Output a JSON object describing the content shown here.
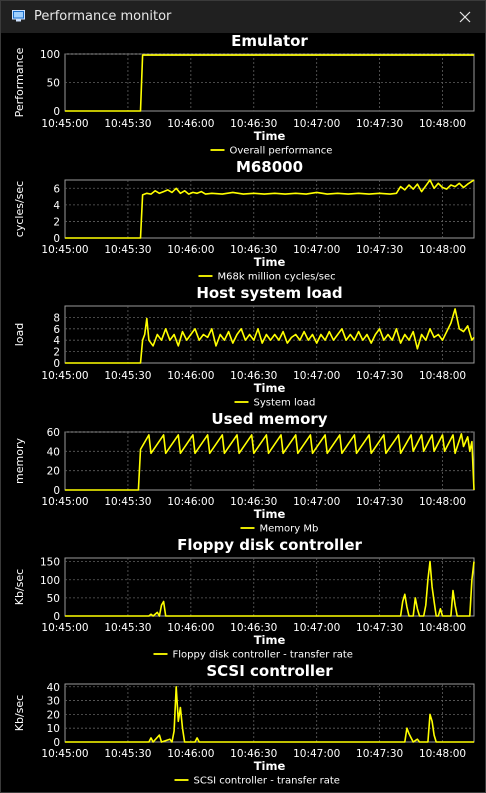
{
  "window": {
    "title": "Performance monitor",
    "icon": "monitor-icon",
    "close_icon": "close-icon"
  },
  "colors": {
    "background": "#000000",
    "series": "#ffff00",
    "grid": "#606060",
    "text": "#ffffff",
    "titlebar": "#202020"
  },
  "x_ticks": [
    "10:45:00",
    "10:45:30",
    "10:46:00",
    "10:46:30",
    "10:47:00",
    "10:47:30",
    "10:48:00"
  ],
  "xlabel": "Time",
  "chart_data": [
    {
      "type": "line",
      "title": "Emulator",
      "ylabel": "Performance",
      "xlabel": "Time",
      "ylim": [
        0,
        100
      ],
      "yticks": [
        0,
        50,
        100
      ],
      "legend": "Overall performance",
      "grid": true,
      "x_range": [
        "10:45:00",
        "10:48:15"
      ],
      "points": [
        [
          0,
          0
        ],
        [
          36,
          0
        ],
        [
          37,
          98
        ],
        [
          195,
          98
        ]
      ]
    },
    {
      "type": "line",
      "title": "M68000",
      "ylabel": "cycles/sec",
      "xlabel": "Time",
      "ylim": [
        0,
        7
      ],
      "yticks": [
        0,
        2,
        4,
        6
      ],
      "legend": "M68k million cycles/sec",
      "grid": true,
      "x_range": [
        "10:45:00",
        "10:48:15"
      ],
      "points": [
        [
          0,
          0
        ],
        [
          36,
          0
        ],
        [
          37,
          5.2
        ],
        [
          39,
          5.4
        ],
        [
          41,
          5.3
        ],
        [
          43,
          5.7
        ],
        [
          45,
          5.4
        ],
        [
          47,
          5.6
        ],
        [
          49,
          5.8
        ],
        [
          51,
          5.5
        ],
        [
          53,
          6.0
        ],
        [
          55,
          5.4
        ],
        [
          57,
          5.7
        ],
        [
          59,
          5.3
        ],
        [
          61,
          5.5
        ],
        [
          63,
          5.4
        ],
        [
          65,
          5.6
        ],
        [
          67,
          5.3
        ],
        [
          70,
          5.4
        ],
        [
          75,
          5.3
        ],
        [
          80,
          5.5
        ],
        [
          85,
          5.3
        ],
        [
          90,
          5.4
        ],
        [
          95,
          5.3
        ],
        [
          100,
          5.4
        ],
        [
          105,
          5.3
        ],
        [
          110,
          5.4
        ],
        [
          115,
          5.3
        ],
        [
          120,
          5.5
        ],
        [
          125,
          5.3
        ],
        [
          130,
          5.4
        ],
        [
          135,
          5.3
        ],
        [
          140,
          5.4
        ],
        [
          145,
          5.3
        ],
        [
          150,
          5.4
        ],
        [
          155,
          5.3
        ],
        [
          158,
          5.4
        ],
        [
          160,
          6.2
        ],
        [
          162,
          5.8
        ],
        [
          164,
          6.4
        ],
        [
          166,
          5.9
        ],
        [
          168,
          6.5
        ],
        [
          170,
          5.6
        ],
        [
          172,
          6.3
        ],
        [
          174,
          7.0
        ],
        [
          176,
          6.0
        ],
        [
          178,
          6.6
        ],
        [
          180,
          6.1
        ],
        [
          182,
          5.9
        ],
        [
          184,
          6.4
        ],
        [
          186,
          6.2
        ],
        [
          188,
          6.6
        ],
        [
          190,
          6.1
        ],
        [
          192,
          6.5
        ],
        [
          195,
          7.0
        ]
      ]
    },
    {
      "type": "line",
      "title": "Host system load",
      "ylabel": "load",
      "xlabel": "Time",
      "ylim": [
        0,
        10
      ],
      "yticks": [
        0,
        2,
        4,
        6,
        8
      ],
      "legend": "System load",
      "grid": true,
      "x_range": [
        "10:45:00",
        "10:48:15"
      ],
      "points": [
        [
          0,
          0
        ],
        [
          36,
          0
        ],
        [
          37,
          4
        ],
        [
          38,
          5
        ],
        [
          39,
          7.8
        ],
        [
          40,
          4
        ],
        [
          42,
          3
        ],
        [
          44,
          5
        ],
        [
          46,
          4
        ],
        [
          48,
          6
        ],
        [
          50,
          4
        ],
        [
          52,
          5
        ],
        [
          54,
          3
        ],
        [
          56,
          5.5
        ],
        [
          58,
          4
        ],
        [
          60,
          5
        ],
        [
          62,
          6
        ],
        [
          64,
          4
        ],
        [
          66,
          5
        ],
        [
          68,
          4.5
        ],
        [
          70,
          6
        ],
        [
          72,
          3
        ],
        [
          74,
          5
        ],
        [
          76,
          4
        ],
        [
          78,
          5.5
        ],
        [
          80,
          3.5
        ],
        [
          82,
          5
        ],
        [
          84,
          6
        ],
        [
          86,
          4
        ],
        [
          88,
          5
        ],
        [
          90,
          4
        ],
        [
          92,
          6
        ],
        [
          94,
          3.5
        ],
        [
          96,
          5
        ],
        [
          98,
          4
        ],
        [
          100,
          5
        ],
        [
          102,
          4
        ],
        [
          104,
          5.5
        ],
        [
          106,
          3.5
        ],
        [
          108,
          4.5
        ],
        [
          110,
          5
        ],
        [
          112,
          4
        ],
        [
          114,
          5.5
        ],
        [
          116,
          4
        ],
        [
          118,
          5
        ],
        [
          120,
          3.5
        ],
        [
          122,
          5
        ],
        [
          124,
          4
        ],
        [
          126,
          5.5
        ],
        [
          128,
          4
        ],
        [
          130,
          5
        ],
        [
          132,
          6
        ],
        [
          134,
          4
        ],
        [
          136,
          5
        ],
        [
          138,
          4
        ],
        [
          140,
          5.5
        ],
        [
          142,
          4
        ],
        [
          144,
          5
        ],
        [
          146,
          3.5
        ],
        [
          148,
          5
        ],
        [
          150,
          6
        ],
        [
          152,
          4
        ],
        [
          154,
          5
        ],
        [
          156,
          4
        ],
        [
          158,
          6
        ],
        [
          160,
          3.5
        ],
        [
          162,
          5
        ],
        [
          164,
          4
        ],
        [
          166,
          5.5
        ],
        [
          168,
          2.5
        ],
        [
          170,
          5
        ],
        [
          172,
          4
        ],
        [
          174,
          6
        ],
        [
          176,
          4.5
        ],
        [
          178,
          5
        ],
        [
          180,
          4
        ],
        [
          182,
          5.5
        ],
        [
          184,
          7
        ],
        [
          186,
          9.5
        ],
        [
          188,
          6
        ],
        [
          190,
          5.5
        ],
        [
          192,
          6.5
        ],
        [
          194,
          4
        ],
        [
          195,
          4.5
        ]
      ]
    },
    {
      "type": "line",
      "title": "Used memory",
      "ylabel": "memory",
      "xlabel": "Time",
      "ylim": [
        0,
        60
      ],
      "yticks": [
        0,
        20,
        40,
        60
      ],
      "legend": "Memory Mb",
      "grid": true,
      "x_range": [
        "10:45:00",
        "10:48:15"
      ],
      "points": [
        [
          0,
          0
        ],
        [
          35,
          0
        ],
        [
          36,
          42
        ],
        [
          40,
          57
        ],
        [
          41,
          38
        ],
        [
          47,
          57
        ],
        [
          48,
          38
        ],
        [
          54,
          57
        ],
        [
          55,
          38
        ],
        [
          61,
          57
        ],
        [
          62,
          38
        ],
        [
          68,
          57
        ],
        [
          69,
          38
        ],
        [
          75,
          57
        ],
        [
          76,
          38
        ],
        [
          82,
          57
        ],
        [
          83,
          38
        ],
        [
          89,
          57
        ],
        [
          90,
          38
        ],
        [
          96,
          57
        ],
        [
          97,
          38
        ],
        [
          103,
          57
        ],
        [
          104,
          38
        ],
        [
          110,
          57
        ],
        [
          111,
          38
        ],
        [
          117,
          57
        ],
        [
          118,
          38
        ],
        [
          124,
          57
        ],
        [
          125,
          38
        ],
        [
          131,
          57
        ],
        [
          132,
          38
        ],
        [
          138,
          57
        ],
        [
          139,
          38
        ],
        [
          145,
          57
        ],
        [
          146,
          38
        ],
        [
          152,
          57
        ],
        [
          153,
          38
        ],
        [
          159,
          57
        ],
        [
          160,
          38
        ],
        [
          165,
          57
        ],
        [
          166,
          40
        ],
        [
          170,
          57
        ],
        [
          171,
          40
        ],
        [
          175,
          57
        ],
        [
          176,
          40
        ],
        [
          180,
          57
        ],
        [
          181,
          40
        ],
        [
          185,
          57
        ],
        [
          186,
          38
        ],
        [
          189,
          58
        ],
        [
          190,
          45
        ],
        [
          192,
          55
        ],
        [
          193,
          40
        ],
        [
          194,
          50
        ],
        [
          195,
          0
        ]
      ]
    },
    {
      "type": "line",
      "title": "Floppy disk controller",
      "ylabel": "Kb/sec",
      "xlabel": "Time",
      "ylim": [
        0,
        160
      ],
      "yticks": [
        0,
        50,
        100,
        150
      ],
      "legend": "Floppy disk controller - transfer rate",
      "grid": true,
      "x_range": [
        "10:45:00",
        "10:48:15"
      ],
      "points": [
        [
          0,
          0
        ],
        [
          40,
          0
        ],
        [
          41,
          5
        ],
        [
          42,
          0
        ],
        [
          44,
          10
        ],
        [
          45,
          0
        ],
        [
          46,
          30
        ],
        [
          47,
          40
        ],
        [
          48,
          0
        ],
        [
          160,
          0
        ],
        [
          161,
          40
        ],
        [
          162,
          60
        ],
        [
          163,
          25
        ],
        [
          164,
          0
        ],
        [
          166,
          0
        ],
        [
          167,
          50
        ],
        [
          168,
          20
        ],
        [
          169,
          0
        ],
        [
          171,
          0
        ],
        [
          172,
          30
        ],
        [
          173,
          100
        ],
        [
          174,
          150
        ],
        [
          175,
          80
        ],
        [
          176,
          40
        ],
        [
          177,
          0
        ],
        [
          178,
          0
        ],
        [
          179,
          20
        ],
        [
          180,
          0
        ],
        [
          184,
          0
        ],
        [
          185,
          70
        ],
        [
          186,
          30
        ],
        [
          187,
          0
        ],
        [
          193,
          0
        ],
        [
          194,
          100
        ],
        [
          195,
          150
        ]
      ]
    },
    {
      "type": "line",
      "title": "SCSI controller",
      "ylabel": "Kb/sec",
      "xlabel": "Time",
      "ylim": [
        0,
        42
      ],
      "yticks": [
        0,
        10,
        20,
        30,
        40
      ],
      "legend": "SCSI controller - transfer rate",
      "grid": true,
      "x_range": [
        "10:45:00",
        "10:48:15"
      ],
      "points": [
        [
          0,
          0
        ],
        [
          40,
          0
        ],
        [
          41,
          3
        ],
        [
          42,
          0
        ],
        [
          45,
          5
        ],
        [
          46,
          0
        ],
        [
          50,
          2
        ],
        [
          51,
          0
        ],
        [
          52,
          8
        ],
        [
          53,
          40
        ],
        [
          54,
          15
        ],
        [
          55,
          25
        ],
        [
          56,
          10
        ],
        [
          57,
          0
        ],
        [
          62,
          0
        ],
        [
          63,
          3
        ],
        [
          64,
          0
        ],
        [
          162,
          0
        ],
        [
          163,
          10
        ],
        [
          164,
          6
        ],
        [
          165,
          3
        ],
        [
          166,
          0
        ],
        [
          168,
          2
        ],
        [
          169,
          0
        ],
        [
          173,
          0
        ],
        [
          174,
          20
        ],
        [
          175,
          15
        ],
        [
          176,
          5
        ],
        [
          177,
          0
        ],
        [
          195,
          0
        ]
      ]
    }
  ]
}
